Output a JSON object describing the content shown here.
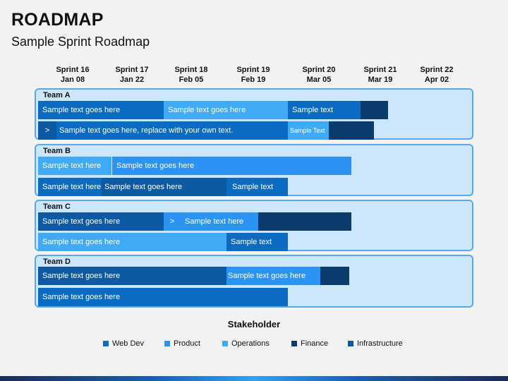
{
  "title": "ROADMAP",
  "subtitle": "Sample Sprint Roadmap",
  "sprints": [
    {
      "name": "Sprint 16",
      "date": "Jan 08"
    },
    {
      "name": "Sprint 17",
      "date": "Jan 22"
    },
    {
      "name": "Sprint 18",
      "date": "Feb 05"
    },
    {
      "name": "Sprint 19",
      "date": "Feb 19"
    },
    {
      "name": "Sprint 20",
      "date": "Mar 05"
    },
    {
      "name": "Sprint 21",
      "date": "Mar 19"
    },
    {
      "name": "Sprint 22",
      "date": "Apr 02"
    }
  ],
  "teams": [
    {
      "label": "Team A",
      "row1": [
        "Sample text goes here",
        "Sample text goes here",
        "Sample text",
        ""
      ],
      "row2": [
        ">",
        "Sample text goes here, replace with your own text.",
        "Sample Text",
        ""
      ]
    },
    {
      "label": "Team B",
      "row1": [
        "Sample text here",
        "Sample text goes here"
      ],
      "row2": [
        "Sample text here",
        "Sample text goes here",
        "Sample text"
      ]
    },
    {
      "label": "Team C",
      "row1": [
        "Sample text goes here",
        ">",
        "Sample text here",
        ""
      ],
      "row2": [
        "Sample text goes here",
        "Sample text"
      ]
    },
    {
      "label": "Team D",
      "row1": [
        "Sample text goes here",
        "Sample text goes here",
        ""
      ],
      "row2": [
        "Sample text goes here"
      ]
    }
  ],
  "stakeholder": {
    "title": "Stakeholder",
    "legend": [
      {
        "label": "Web Dev",
        "color": "#0a6bc1"
      },
      {
        "label": "Product",
        "color": "#2b93f3"
      },
      {
        "label": "Operations",
        "color": "#40aaf5"
      },
      {
        "label": "Finance",
        "color": "#0b3b6d"
      },
      {
        "label": "Infrastructure",
        "color": "#0d5aa2"
      }
    ]
  }
}
